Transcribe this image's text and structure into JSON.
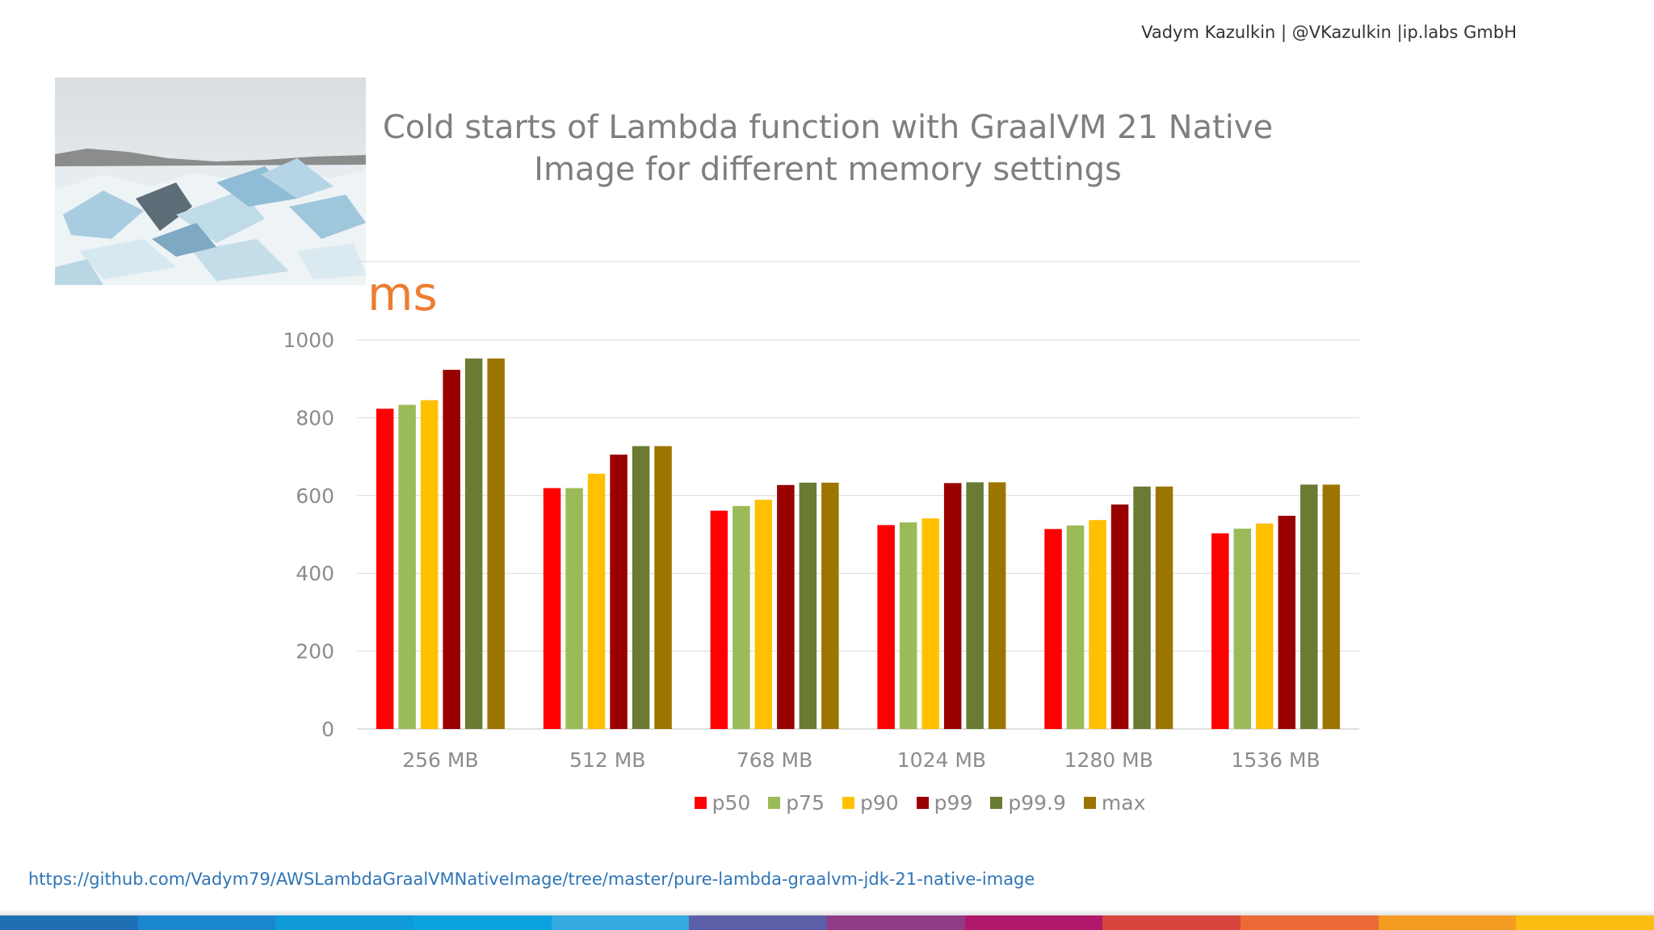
{
  "header": {
    "author": "Vadym Kazulkin | @VKazulkin |ip.labs GmbH"
  },
  "slide": {
    "title_line1": "Cold starts of Lambda function with GraalVM 21 Native",
    "title_line2": "Image for different memory settings",
    "unit_label": "ms",
    "source_url": "https://github.com/Vadym79/AWSLambdaGraalVMNativeImage/tree/master/pure-lambda-graalvm-jdk-21-native-image"
  },
  "chart_data": {
    "type": "bar",
    "title": "Cold starts of Lambda function with GraalVM 21 Native Image for different memory settings",
    "ylabel": "ms",
    "ylim": [
      0,
      1000
    ],
    "yticks": [
      0,
      200,
      400,
      600,
      800,
      1000
    ],
    "grid": true,
    "legend_position": "bottom",
    "categories": [
      "256 MB",
      "512 MB",
      "768 MB",
      "1024 MB",
      "1280 MB",
      "1536 MB"
    ],
    "series": [
      {
        "name": "p50",
        "color": "#ff0000",
        "values": [
          823,
          619,
          561,
          524,
          514,
          503
        ]
      },
      {
        "name": "p75",
        "color": "#9bbb59",
        "values": [
          833,
          619,
          573,
          531,
          523,
          515
        ]
      },
      {
        "name": "p90",
        "color": "#ffc000",
        "values": [
          845,
          656,
          589,
          541,
          537,
          528
        ]
      },
      {
        "name": "p99",
        "color": "#990000",
        "values": [
          923,
          705,
          627,
          632,
          577,
          548
        ]
      },
      {
        "name": "p99.9",
        "color": "#6a7b34",
        "values": [
          952,
          727,
          633,
          634,
          623,
          628
        ]
      },
      {
        "name": "max",
        "color": "#9c7500",
        "values": [
          952,
          727,
          633,
          634,
          623,
          628
        ]
      }
    ]
  },
  "footer_stripe_colors": [
    "#1f6fb5",
    "#1a86cf",
    "#0e9ad8",
    "#0aa3df",
    "#35a9e1",
    "#5c5ea8",
    "#8e3c86",
    "#b0196b",
    "#d8453c",
    "#ec6a35",
    "#f39c21",
    "#fbbd12"
  ]
}
